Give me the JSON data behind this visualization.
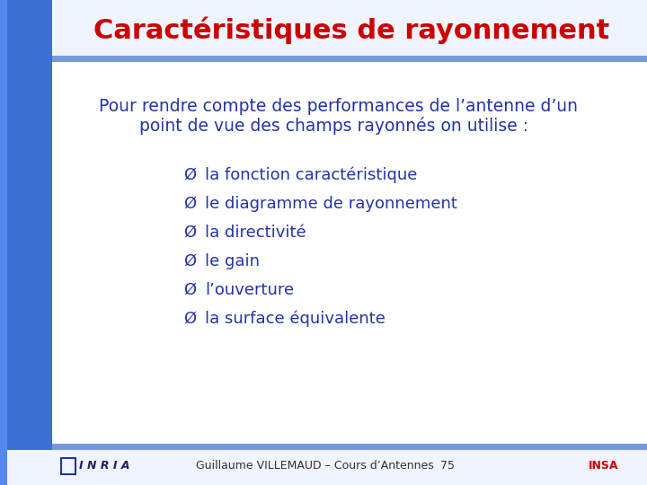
{
  "title": "Caractéristiques de rayonnement",
  "title_color": "#cc0000",
  "title_fontsize": 22,
  "bg_color": "#ffffff",
  "left_bar_color_top": "#4488dd",
  "left_bar_color_bottom": "#2255bb",
  "separator_color": "#88aaee",
  "intro_text_line1": "Pour rendre compte des performances de l’antenne d’un",
  "intro_text_line2": "point de vue des champs rayonnés on utilise :",
  "intro_color": "#2233aa",
  "intro_fontsize": 13.5,
  "bullet_items": [
    "la fonction caractéristique",
    "le diagramme de rayonnement",
    "la directivité",
    "le gain",
    "l’ouverture",
    "la surface équivalente"
  ],
  "bullet_color": "#2233aa",
  "bullet_fontsize": 13,
  "footer_text": "Guillaume VILLEMAUD – Cours d’Antennes",
  "footer_page": "75",
  "footer_color": "#333333",
  "footer_fontsize": 9,
  "inria_text": "I N R I A",
  "insa_text": "INSA"
}
